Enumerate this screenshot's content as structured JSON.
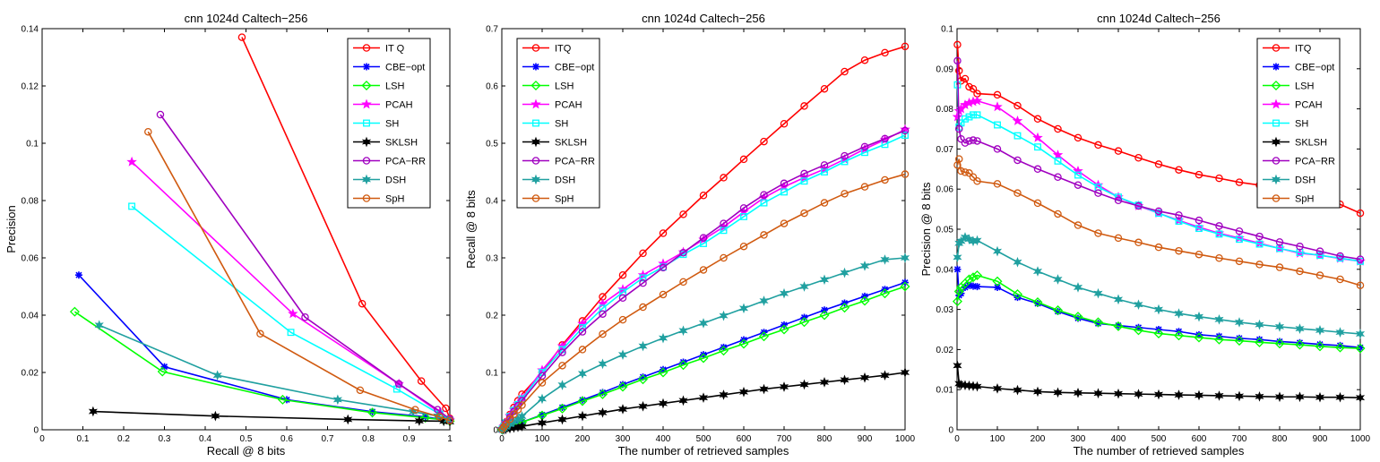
{
  "colors": {
    "ITQ": "#ff0000",
    "CBE-opt": "#0000ff",
    "LSH": "#00ff00",
    "PCAH": "#ff00ff",
    "SH": "#00ffff",
    "SKLSH": "#000000",
    "PCA-RR": "#a000c0",
    "DSH": "#20a0a0",
    "SpH": "#d05a10"
  },
  "chart_data": [
    {
      "type": "line",
      "title": "cnn 1024d Caltech−256",
      "xlabel": "Recall @ 8 bits",
      "ylabel": "Precision",
      "xlim": [
        0,
        1
      ],
      "ylim": [
        0,
        0.14
      ],
      "xticks": [
        0,
        0.1,
        0.2,
        0.3,
        0.4,
        0.5,
        0.6,
        0.7,
        0.8,
        0.9,
        1
      ],
      "xticklabels": [
        "0",
        "0.1",
        "0.2",
        "0.3",
        "0.4",
        "0.5",
        "0.6",
        "0.7",
        "0.8",
        "0.9",
        "1"
      ],
      "yticks": [
        0,
        0.02,
        0.04,
        0.06,
        0.08,
        0.1,
        0.12,
        0.14
      ],
      "yticklabels": [
        "0",
        "0.02",
        "0.04",
        "0.06",
        "0.08",
        "0.1",
        "0.12",
        "0.14"
      ],
      "legend_position": "top-right",
      "series": [
        {
          "name": "IT Q",
          "key": "ITQ",
          "marker": "circle",
          "x": [
            0.49,
            0.785,
            0.93,
            0.99,
            1.0
          ],
          "y": [
            0.137,
            0.044,
            0.017,
            0.0075,
            0.004
          ]
        },
        {
          "name": "CBE−opt",
          "key": "CBE-opt",
          "marker": "asterisk",
          "x": [
            0.09,
            0.3,
            0.6,
            0.81,
            0.94,
            0.985,
            1.0
          ],
          "y": [
            0.054,
            0.022,
            0.0105,
            0.0063,
            0.0045,
            0.0035,
            0.003
          ]
        },
        {
          "name": "LSH",
          "key": "LSH",
          "marker": "diamond",
          "x": [
            0.08,
            0.295,
            0.59,
            0.81,
            0.94,
            0.985,
            1.0
          ],
          "y": [
            0.0412,
            0.0203,
            0.0105,
            0.006,
            0.0042,
            0.0034,
            0.003
          ]
        },
        {
          "name": "PCAH",
          "key": "PCAH",
          "marker": "star",
          "x": [
            0.22,
            0.615,
            0.875,
            0.975,
            1.0
          ],
          "y": [
            0.0935,
            0.0405,
            0.016,
            0.006,
            0.0035
          ]
        },
        {
          "name": "SH",
          "key": "SH",
          "marker": "square",
          "x": [
            0.22,
            0.61,
            0.87,
            0.975,
            1.0
          ],
          "y": [
            0.078,
            0.034,
            0.0142,
            0.0055,
            0.0033
          ]
        },
        {
          "name": "SKLSH",
          "key": "SKLSH",
          "marker": "hexstar",
          "x": [
            0.125,
            0.425,
            0.75,
            0.925,
            0.985,
            1.0
          ],
          "y": [
            0.0064,
            0.0048,
            0.0036,
            0.0031,
            0.003,
            0.0028
          ]
        },
        {
          "name": "PCA−RR",
          "key": "PCA-RR",
          "marker": "circle",
          "x": [
            0.29,
            0.645,
            0.875,
            0.97,
            1.0
          ],
          "y": [
            0.11,
            0.0393,
            0.016,
            0.007,
            0.0037
          ]
        },
        {
          "name": "DSH",
          "key": "DSH",
          "marker": "hexstar",
          "x": [
            0.14,
            0.43,
            0.725,
            0.91,
            0.97,
            0.995
          ],
          "y": [
            0.0365,
            0.019,
            0.0105,
            0.0063,
            0.0048,
            0.0035
          ]
        },
        {
          "name": "SpH",
          "key": "SpH",
          "marker": "circle",
          "x": [
            0.26,
            0.535,
            0.78,
            0.915,
            0.975,
            1.0
          ],
          "y": [
            0.104,
            0.0335,
            0.0138,
            0.007,
            0.0045,
            0.0032
          ]
        }
      ]
    },
    {
      "type": "line",
      "title": "cnn 1024d Caltech−256",
      "xlabel": "The number of retrieved samples",
      "ylabel": "Recall @ 8 bits",
      "xlim": [
        0,
        1000
      ],
      "ylim": [
        0,
        0.7
      ],
      "xticks": [
        0,
        100,
        200,
        300,
        400,
        500,
        600,
        700,
        800,
        900,
        1000
      ],
      "xticklabels": [
        "0",
        "100",
        "200",
        "300",
        "400",
        "500",
        "600",
        "700",
        "800",
        "900",
        "1000"
      ],
      "yticks": [
        0,
        0.1,
        0.2,
        0.3,
        0.4,
        0.5,
        0.6,
        0.7
      ],
      "yticklabels": [
        "0",
        "0.1",
        "0.2",
        "0.3",
        "0.4",
        "0.5",
        "0.6",
        "0.7"
      ],
      "legend_position": "top-left",
      "x": [
        1,
        5,
        10,
        20,
        30,
        40,
        50,
        100,
        150,
        200,
        250,
        300,
        350,
        400,
        450,
        500,
        550,
        600,
        650,
        700,
        750,
        800,
        850,
        900,
        950,
        1000
      ],
      "series": [
        {
          "name": "ITQ",
          "key": "ITQ",
          "marker": "circle",
          "y": [
            0.0014,
            0.0068,
            0.0135,
            0.0265,
            0.039,
            0.0505,
            0.062,
            0.1,
            0.148,
            0.19,
            0.232,
            0.27,
            0.308,
            0.343,
            0.376,
            0.409,
            0.44,
            0.472,
            0.503,
            0.534,
            0.565,
            0.595,
            0.625,
            0.645,
            0.658,
            0.669
          ]
        },
        {
          "name": "CBE−opt",
          "key": "CBE-opt",
          "marker": "asterisk",
          "y": [
            0.0003,
            0.0015,
            0.003,
            0.0058,
            0.0085,
            0.011,
            0.0135,
            0.026,
            0.039,
            0.052,
            0.065,
            0.079,
            0.092,
            0.105,
            0.118,
            0.131,
            0.144,
            0.157,
            0.17,
            0.183,
            0.196,
            0.209,
            0.221,
            0.233,
            0.245,
            0.257
          ]
        },
        {
          "name": "LSH",
          "key": "LSH",
          "marker": "diamond",
          "y": [
            0.0003,
            0.0015,
            0.003,
            0.0057,
            0.0083,
            0.0108,
            0.0132,
            0.025,
            0.037,
            0.05,
            0.062,
            0.075,
            0.088,
            0.1,
            0.113,
            0.125,
            0.138,
            0.15,
            0.163,
            0.175,
            0.188,
            0.2,
            0.213,
            0.225,
            0.238,
            0.25
          ]
        },
        {
          "name": "PCAH",
          "key": "PCAH",
          "marker": "star",
          "y": [
            0.0013,
            0.0062,
            0.0122,
            0.024,
            0.035,
            0.0455,
            0.0555,
            0.104,
            0.146,
            0.185,
            0.22,
            0.245,
            0.27,
            0.29,
            0.31,
            0.332,
            0.354,
            0.38,
            0.405,
            0.424,
            0.44,
            0.455,
            0.472,
            0.49,
            0.506,
            0.524
          ]
        },
        {
          "name": "SH",
          "key": "SH",
          "marker": "square",
          "y": [
            0.0013,
            0.006,
            0.0118,
            0.0232,
            0.034,
            0.044,
            0.0538,
            0.1,
            0.14,
            0.178,
            0.212,
            0.24,
            0.265,
            0.284,
            0.306,
            0.325,
            0.348,
            0.372,
            0.396,
            0.415,
            0.434,
            0.45,
            0.468,
            0.484,
            0.498,
            0.514
          ]
        },
        {
          "name": "SKLSH",
          "key": "SKLSH",
          "marker": "hexstar",
          "y": [
            0.00012,
            0.0006,
            0.0012,
            0.0024,
            0.0036,
            0.0048,
            0.006,
            0.012,
            0.018,
            0.024,
            0.03,
            0.036,
            0.041,
            0.046,
            0.051,
            0.056,
            0.061,
            0.066,
            0.071,
            0.075,
            0.079,
            0.083,
            0.087,
            0.091,
            0.095,
            0.1
          ]
        },
        {
          "name": "PCA−RR",
          "key": "PCA-RR",
          "marker": "circle",
          "y": [
            0.0012,
            0.0057,
            0.0112,
            0.022,
            0.032,
            0.042,
            0.051,
            0.094,
            0.135,
            0.171,
            0.202,
            0.23,
            0.256,
            0.283,
            0.309,
            0.335,
            0.36,
            0.387,
            0.41,
            0.43,
            0.447,
            0.462,
            0.478,
            0.494,
            0.508,
            0.522
          ]
        },
        {
          "name": "DSH",
          "key": "DSH",
          "marker": "hexstar",
          "y": [
            0.0005,
            0.0024,
            0.0048,
            0.0095,
            0.014,
            0.0185,
            0.0235,
            0.054,
            0.078,
            0.098,
            0.115,
            0.131,
            0.146,
            0.16,
            0.173,
            0.186,
            0.199,
            0.212,
            0.225,
            0.238,
            0.25,
            0.262,
            0.274,
            0.286,
            0.297,
            0.3
          ]
        },
        {
          "name": "SpH",
          "key": "SpH",
          "marker": "circle",
          "y": [
            0.001,
            0.0048,
            0.0095,
            0.0185,
            0.027,
            0.035,
            0.043,
            0.082,
            0.112,
            0.14,
            0.167,
            0.192,
            0.214,
            0.236,
            0.258,
            0.279,
            0.3,
            0.32,
            0.34,
            0.36,
            0.378,
            0.396,
            0.412,
            0.424,
            0.436,
            0.446
          ]
        }
      ]
    },
    {
      "type": "line",
      "title": "cnn 1024d Caltech−256",
      "xlabel": "The number of retrieved samples",
      "ylabel": "Precision @ 8 bits",
      "xlim": [
        0,
        1000
      ],
      "ylim": [
        0,
        0.1
      ],
      "xticks": [
        0,
        100,
        200,
        300,
        400,
        500,
        600,
        700,
        800,
        900,
        1000
      ],
      "xticklabels": [
        "0",
        "100",
        "200",
        "300",
        "400",
        "500",
        "600",
        "700",
        "800",
        "900",
        "1000"
      ],
      "yticks": [
        0,
        0.01,
        0.02,
        0.03,
        0.04,
        0.05,
        0.06,
        0.07,
        0.08,
        0.09,
        0.1
      ],
      "yticklabels": [
        "0",
        "0.01",
        "0.02",
        "0.03",
        "0.04",
        "0.05",
        "0.06",
        "0.07",
        "0.08",
        "0.09",
        "0.1"
      ],
      "legend_position": "top-right",
      "x": [
        1,
        5,
        10,
        20,
        30,
        40,
        50,
        100,
        150,
        200,
        250,
        300,
        350,
        400,
        450,
        500,
        550,
        600,
        650,
        700,
        750,
        800,
        850,
        900,
        950,
        1000
      ],
      "series": [
        {
          "name": "ITQ",
          "key": "ITQ",
          "marker": "circle",
          "y": [
            0.096,
            0.0895,
            0.087,
            0.0875,
            0.0855,
            0.085,
            0.0838,
            0.0835,
            0.0808,
            0.0775,
            0.075,
            0.0728,
            0.071,
            0.0695,
            0.0678,
            0.0662,
            0.0648,
            0.0636,
            0.0627,
            0.0617,
            0.061,
            0.0602,
            0.0595,
            0.0585,
            0.0562,
            0.054
          ]
        },
        {
          "name": "CBE−opt",
          "key": "CBE-opt",
          "marker": "asterisk",
          "y": [
            0.04,
            0.0335,
            0.034,
            0.0355,
            0.036,
            0.0358,
            0.0357,
            0.0355,
            0.033,
            0.0315,
            0.0295,
            0.0278,
            0.0265,
            0.026,
            0.0255,
            0.025,
            0.0245,
            0.0237,
            0.0233,
            0.0228,
            0.0225,
            0.022,
            0.0217,
            0.0213,
            0.021,
            0.0205
          ]
        },
        {
          "name": "LSH",
          "key": "LSH",
          "marker": "diamond",
          "y": [
            0.032,
            0.0345,
            0.0355,
            0.0365,
            0.0375,
            0.038,
            0.0385,
            0.037,
            0.0338,
            0.0318,
            0.0298,
            0.0282,
            0.0268,
            0.0258,
            0.0248,
            0.024,
            0.0235,
            0.023,
            0.0225,
            0.0222,
            0.0218,
            0.0215,
            0.0212,
            0.0208,
            0.0205,
            0.0203
          ]
        },
        {
          "name": "PCAH",
          "key": "PCAH",
          "marker": "star",
          "y": [
            0.078,
            0.0795,
            0.08,
            0.081,
            0.0815,
            0.0818,
            0.082,
            0.0805,
            0.077,
            0.0728,
            0.0685,
            0.0645,
            0.061,
            0.058,
            0.0558,
            0.054,
            0.0522,
            0.0505,
            0.049,
            0.0478,
            0.0465,
            0.0452,
            0.044,
            0.0435,
            0.0427,
            0.042
          ]
        },
        {
          "name": "SH",
          "key": "SH",
          "marker": "square",
          "y": [
            0.086,
            0.0755,
            0.0765,
            0.0775,
            0.078,
            0.0785,
            0.0785,
            0.076,
            0.0733,
            0.0705,
            0.067,
            0.0635,
            0.0605,
            0.058,
            0.056,
            0.054,
            0.052,
            0.0502,
            0.0488,
            0.0475,
            0.0463,
            0.0452,
            0.0442,
            0.0435,
            0.0428,
            0.042
          ]
        },
        {
          "name": "SKLSH",
          "key": "SKLSH",
          "marker": "hexstar",
          "y": [
            0.016,
            0.0115,
            0.0112,
            0.0111,
            0.011,
            0.0109,
            0.0108,
            0.0103,
            0.0099,
            0.0095,
            0.0093,
            0.0092,
            0.0091,
            0.009,
            0.0089,
            0.0088,
            0.0087,
            0.0086,
            0.0085,
            0.0084,
            0.0083,
            0.0082,
            0.0082,
            0.0081,
            0.0081,
            0.008
          ]
        },
        {
          "name": "PCA−RR",
          "key": "PCA-RR",
          "marker": "circle",
          "y": [
            0.092,
            0.075,
            0.0725,
            0.0715,
            0.072,
            0.0722,
            0.072,
            0.07,
            0.0672,
            0.065,
            0.063,
            0.061,
            0.059,
            0.0572,
            0.0558,
            0.0545,
            0.0535,
            0.0522,
            0.0508,
            0.0495,
            0.0482,
            0.0468,
            0.0457,
            0.0445,
            0.0433,
            0.0425
          ]
        },
        {
          "name": "DSH",
          "key": "DSH",
          "marker": "hexstar",
          "y": [
            0.043,
            0.0465,
            0.047,
            0.048,
            0.0475,
            0.047,
            0.0472,
            0.0445,
            0.0418,
            0.0395,
            0.0375,
            0.0355,
            0.034,
            0.0325,
            0.0312,
            0.03,
            0.029,
            0.0282,
            0.0275,
            0.0268,
            0.0262,
            0.0257,
            0.0252,
            0.0248,
            0.0243,
            0.0239
          ]
        },
        {
          "name": "SpH",
          "key": "SpH",
          "marker": "circle",
          "y": [
            0.066,
            0.0675,
            0.0645,
            0.0642,
            0.064,
            0.063,
            0.062,
            0.0613,
            0.059,
            0.0565,
            0.0538,
            0.051,
            0.049,
            0.0478,
            0.0467,
            0.0455,
            0.0446,
            0.0437,
            0.0428,
            0.042,
            0.0412,
            0.0405,
            0.0395,
            0.0385,
            0.0375,
            0.036
          ]
        }
      ]
    }
  ]
}
